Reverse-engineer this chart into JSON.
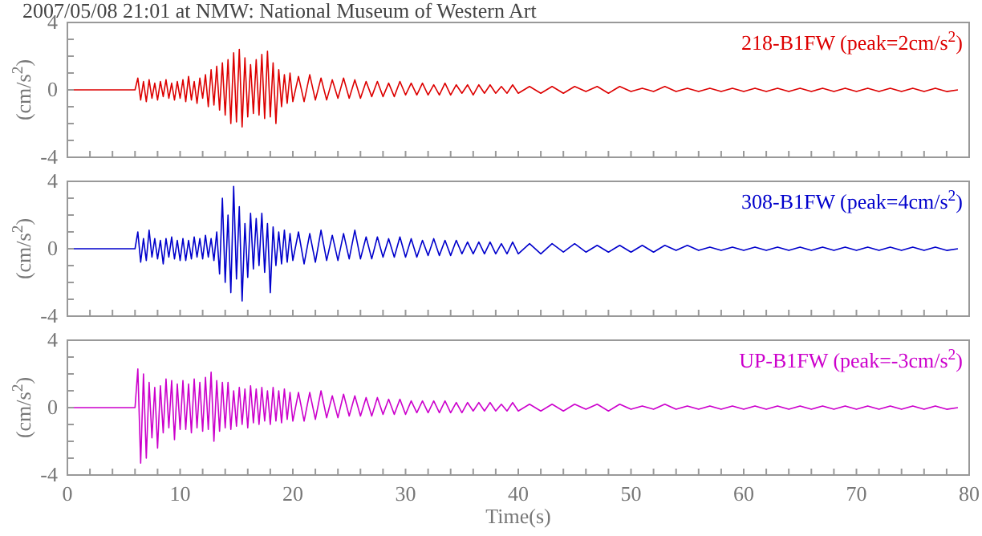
{
  "chart_data": [
    {
      "type": "line",
      "title": "2007/05/08 21:01 at NMW: National Museum of Western Art",
      "ylabel": "(cm/s$^{2}$)",
      "legend": "top right",
      "tick_labels": "y",
      "xlim": [
        0,
        80
      ],
      "ylim": [
        -4,
        4
      ],
      "xticks": [
        0,
        {
          "value": 2,
          "label": null
        },
        {
          "value": 4,
          "label": null
        },
        {
          "value": 6,
          "label": null
        },
        {
          "value": 8,
          "label": null
        },
        10,
        {
          "value": 12,
          "label": null
        },
        {
          "value": 14,
          "label": null
        },
        {
          "value": 16,
          "label": null
        },
        {
          "value": 18,
          "label": null
        },
        20,
        {
          "value": 22,
          "label": null
        },
        {
          "value": 24,
          "label": null
        },
        {
          "value": 26,
          "label": null
        },
        {
          "value": 28,
          "label": null
        },
        30,
        {
          "value": 32,
          "label": null
        },
        {
          "value": 34,
          "label": null
        },
        {
          "value": 36,
          "label": null
        },
        {
          "value": 38,
          "label": null
        },
        40,
        {
          "value": 42,
          "label": null
        },
        {
          "value": 44,
          "label": null
        },
        {
          "value": 46,
          "label": null
        },
        {
          "value": 48,
          "label": null
        },
        50,
        {
          "value": 52,
          "label": null
        },
        {
          "value": 54,
          "label": null
        },
        {
          "value": 56,
          "label": null
        },
        {
          "value": 58,
          "label": null
        },
        60,
        {
          "value": 62,
          "label": null
        },
        {
          "value": 64,
          "label": null
        },
        {
          "value": 66,
          "label": null
        },
        {
          "value": 68,
          "label": null
        },
        70,
        {
          "value": 72,
          "label": null
        },
        {
          "value": 74,
          "label": null
        },
        {
          "value": 76,
          "label": null
        },
        {
          "value": 78,
          "label": null
        },
        80
      ],
      "yticks": [
        -4,
        {
          "value": -3,
          "label": null
        },
        {
          "value": -2,
          "label": null
        },
        {
          "value": -1,
          "label": null
        },
        0,
        {
          "value": 1,
          "label": null
        },
        {
          "value": 2,
          "label": null
        },
        {
          "value": 3,
          "label": null
        },
        4
      ],
      "x": [
        0,
        6,
        6.25,
        6.5,
        6.75,
        7,
        7.25,
        7.5,
        7.75,
        8,
        8.25,
        8.5,
        8.75,
        9,
        9.25,
        9.5,
        9.75,
        10,
        10.25,
        10.5,
        10.75,
        11,
        11.25,
        11.5,
        11.75,
        12,
        12.25,
        12.5,
        12.75,
        13,
        13.25,
        13.5,
        13.75,
        14,
        14.25,
        14.5,
        14.75,
        15,
        15.25,
        15.5,
        15.75,
        16,
        16.25,
        16.5,
        16.75,
        17,
        17.25,
        17.5,
        17.75,
        18,
        18.25,
        18.5,
        18.75,
        19,
        19.25,
        19.5,
        19.75,
        20,
        20.5,
        21,
        21.5,
        22,
        22.5,
        23,
        23.5,
        24,
        24.5,
        25,
        25.5,
        26,
        26.5,
        27,
        27.5,
        28,
        28.5,
        29,
        29.5,
        30,
        30.5,
        31,
        31.5,
        32,
        32.5,
        33,
        33.5,
        34,
        34.5,
        35,
        35.5,
        36,
        36.5,
        37,
        37.5,
        38,
        38.5,
        39,
        39.5,
        40,
        41,
        42,
        43,
        44,
        45,
        46,
        47,
        48,
        49,
        50,
        51,
        52,
        53,
        54,
        55,
        56,
        57,
        58,
        59,
        60,
        61,
        62,
        63,
        64,
        65,
        66,
        67,
        68,
        69,
        70,
        71,
        72,
        73,
        74,
        75,
        76,
        77,
        78,
        79
      ],
      "series": [
        {
          "name": "218-B1FW (peak=2cm/s$^{2}$)",
          "color": "#dd0000",
          "values": [
            0,
            0,
            0.7,
            -0.6,
            0.5,
            -0.7,
            0.6,
            -0.5,
            0.4,
            -0.6,
            0.5,
            -0.4,
            0.6,
            -0.5,
            0.4,
            -0.6,
            0.5,
            -0.5,
            0.6,
            -0.7,
            0.8,
            -0.6,
            0.5,
            -0.8,
            0.7,
            -0.5,
            0.9,
            -1.0,
            1.2,
            -0.9,
            1.4,
            -1.2,
            1.6,
            -1.5,
            1.8,
            -2.0,
            2.2,
            -1.9,
            2.4,
            -2.2,
            1.9,
            -1.6,
            1.5,
            -1.4,
            1.8,
            -1.5,
            2.1,
            -1.7,
            2.3,
            -1.6,
            1.6,
            -2.0,
            1.2,
            -1.0,
            0.9,
            -0.8,
            1.0,
            -0.7,
            0.8,
            -0.7,
            0.9,
            -0.6,
            0.7,
            -0.6,
            0.6,
            -0.5,
            0.7,
            -0.5,
            0.6,
            -0.5,
            0.5,
            -0.4,
            0.5,
            -0.4,
            0.4,
            -0.4,
            0.5,
            -0.3,
            0.4,
            -0.3,
            0.4,
            -0.3,
            0.3,
            -0.3,
            0.4,
            -0.3,
            0.3,
            -0.2,
            0.3,
            -0.3,
            0.3,
            -0.2,
            0.3,
            -0.2,
            0.2,
            -0.2,
            0.3,
            -0.2,
            0.2,
            -0.2,
            0.2,
            -0.2,
            0.2,
            -0.1,
            0.2,
            -0.2,
            0.2,
            -0.1,
            0.1,
            -0.1,
            0.2,
            -0.1,
            0.1,
            -0.1,
            0.1,
            -0.1,
            0.1,
            -0.1,
            0.1,
            -0.1,
            0.1,
            -0.1,
            0.1,
            -0.1,
            0.1,
            -0.1,
            0.1,
            -0.1,
            0.1,
            -0.1,
            0.1,
            -0.1,
            0.1,
            -0.1,
            0.1,
            -0.1,
            0
          ]
        }
      ]
    },
    {
      "type": "line",
      "ylabel": "(cm/s$^{2}$)",
      "legend": "top right",
      "tick_labels": "y",
      "xlim": [
        0,
        80
      ],
      "ylim": [
        -4,
        4
      ],
      "xticks": [
        0,
        {
          "value": 2,
          "label": null
        },
        {
          "value": 4,
          "label": null
        },
        {
          "value": 6,
          "label": null
        },
        {
          "value": 8,
          "label": null
        },
        10,
        {
          "value": 12,
          "label": null
        },
        {
          "value": 14,
          "label": null
        },
        {
          "value": 16,
          "label": null
        },
        {
          "value": 18,
          "label": null
        },
        20,
        {
          "value": 22,
          "label": null
        },
        {
          "value": 24,
          "label": null
        },
        {
          "value": 26,
          "label": null
        },
        {
          "value": 28,
          "label": null
        },
        30,
        {
          "value": 32,
          "label": null
        },
        {
          "value": 34,
          "label": null
        },
        {
          "value": 36,
          "label": null
        },
        {
          "value": 38,
          "label": null
        },
        40,
        {
          "value": 42,
          "label": null
        },
        {
          "value": 44,
          "label": null
        },
        {
          "value": 46,
          "label": null
        },
        {
          "value": 48,
          "label": null
        },
        50,
        {
          "value": 52,
          "label": null
        },
        {
          "value": 54,
          "label": null
        },
        {
          "value": 56,
          "label": null
        },
        {
          "value": 58,
          "label": null
        },
        60,
        {
          "value": 62,
          "label": null
        },
        {
          "value": 64,
          "label": null
        },
        {
          "value": 66,
          "label": null
        },
        {
          "value": 68,
          "label": null
        },
        70,
        {
          "value": 72,
          "label": null
        },
        {
          "value": 74,
          "label": null
        },
        {
          "value": 76,
          "label": null
        },
        {
          "value": 78,
          "label": null
        },
        80
      ],
      "yticks": [
        -4,
        {
          "value": -3,
          "label": null
        },
        {
          "value": -2,
          "label": null
        },
        {
          "value": -1,
          "label": null
        },
        0,
        {
          "value": 1,
          "label": null
        },
        {
          "value": 2,
          "label": null
        },
        {
          "value": 3,
          "label": null
        },
        4
      ],
      "x": [
        0,
        6,
        6.25,
        6.5,
        6.75,
        7,
        7.25,
        7.5,
        7.75,
        8,
        8.25,
        8.5,
        8.75,
        9,
        9.25,
        9.5,
        9.75,
        10,
        10.25,
        10.5,
        10.75,
        11,
        11.25,
        11.5,
        11.75,
        12,
        12.25,
        12.5,
        12.75,
        13,
        13.25,
        13.5,
        13.75,
        14,
        14.25,
        14.5,
        14.75,
        15,
        15.25,
        15.5,
        15.75,
        16,
        16.25,
        16.5,
        16.75,
        17,
        17.25,
        17.5,
        17.75,
        18,
        18.25,
        18.5,
        18.75,
        19,
        19.25,
        19.5,
        19.75,
        20,
        20.5,
        21,
        21.5,
        22,
        22.5,
        23,
        23.5,
        24,
        24.5,
        25,
        25.5,
        26,
        26.5,
        27,
        27.5,
        28,
        28.5,
        29,
        29.5,
        30,
        30.5,
        31,
        31.5,
        32,
        32.5,
        33,
        33.5,
        34,
        34.5,
        35,
        35.5,
        36,
        36.5,
        37,
        37.5,
        38,
        38.5,
        39,
        39.5,
        40,
        41,
        42,
        43,
        44,
        45,
        46,
        47,
        48,
        49,
        50,
        51,
        52,
        53,
        54,
        55,
        56,
        57,
        58,
        59,
        60,
        61,
        62,
        63,
        64,
        65,
        66,
        67,
        68,
        69,
        70,
        71,
        72,
        73,
        74,
        75,
        76,
        77,
        78,
        79
      ],
      "series": [
        {
          "name": "308-B1FW (peak=4cm/s$^{2}$)",
          "color": "#0000cc",
          "values": [
            0,
            0,
            1.0,
            -0.8,
            0.6,
            -0.7,
            1.1,
            -0.5,
            0.6,
            -0.6,
            0.5,
            -0.9,
            0.6,
            -0.5,
            0.7,
            -0.6,
            0.5,
            -0.7,
            0.6,
            -0.7,
            0.5,
            -0.6,
            0.7,
            -0.5,
            0.6,
            -0.6,
            0.8,
            -0.5,
            0.6,
            -0.7,
            1.0,
            -1.5,
            3.0,
            -2.0,
            2.0,
            -2.6,
            3.7,
            -1.8,
            2.5,
            -3.1,
            1.5,
            -1.7,
            2.1,
            -1.2,
            1.8,
            -1.0,
            2.1,
            -1.4,
            1.5,
            -2.6,
            1.3,
            -1.0,
            1.0,
            -0.9,
            1.1,
            -0.8,
            0.9,
            -0.7,
            1.0,
            -0.9,
            0.9,
            -0.8,
            1.1,
            -0.7,
            0.8,
            -0.7,
            0.9,
            -0.6,
            1.1,
            -0.6,
            0.7,
            -0.6,
            0.7,
            -0.5,
            0.6,
            -0.5,
            0.7,
            -0.5,
            0.6,
            -0.5,
            0.5,
            -0.4,
            0.6,
            -0.4,
            0.5,
            -0.4,
            0.5,
            -0.3,
            0.4,
            -0.3,
            0.4,
            -0.3,
            0.4,
            -0.3,
            0.3,
            -0.3,
            0.4,
            -0.3,
            0.3,
            -0.3,
            0.3,
            -0.2,
            0.3,
            -0.2,
            0.2,
            -0.2,
            0.2,
            -0.2,
            0.2,
            -0.2,
            0.2,
            -0.1,
            0.2,
            -0.1,
            0.1,
            -0.1,
            0.1,
            -0.1,
            0.1,
            -0.1,
            0.1,
            -0.1,
            0.1,
            -0.1,
            0.1,
            -0.1,
            0.1,
            -0.1,
            0.1,
            -0.1,
            0.1,
            -0.1,
            0.1,
            -0.1,
            0.1,
            -0.1,
            0
          ]
        }
      ]
    },
    {
      "type": "line",
      "ylabel": "(cm/s$^{2}$)",
      "xlabel": "Time(s)",
      "legend": "top right",
      "xlim": [
        0,
        80
      ],
      "ylim": [
        -4,
        4
      ],
      "xticks": [
        0,
        {
          "value": 2,
          "label": null
        },
        {
          "value": 4,
          "label": null
        },
        {
          "value": 6,
          "label": null
        },
        {
          "value": 8,
          "label": null
        },
        10,
        {
          "value": 12,
          "label": null
        },
        {
          "value": 14,
          "label": null
        },
        {
          "value": 16,
          "label": null
        },
        {
          "value": 18,
          "label": null
        },
        20,
        {
          "value": 22,
          "label": null
        },
        {
          "value": 24,
          "label": null
        },
        {
          "value": 26,
          "label": null
        },
        {
          "value": 28,
          "label": null
        },
        30,
        {
          "value": 32,
          "label": null
        },
        {
          "value": 34,
          "label": null
        },
        {
          "value": 36,
          "label": null
        },
        {
          "value": 38,
          "label": null
        },
        40,
        {
          "value": 42,
          "label": null
        },
        {
          "value": 44,
          "label": null
        },
        {
          "value": 46,
          "label": null
        },
        {
          "value": 48,
          "label": null
        },
        50,
        {
          "value": 52,
          "label": null
        },
        {
          "value": 54,
          "label": null
        },
        {
          "value": 56,
          "label": null
        },
        {
          "value": 58,
          "label": null
        },
        60,
        {
          "value": 62,
          "label": null
        },
        {
          "value": 64,
          "label": null
        },
        {
          "value": 66,
          "label": null
        },
        {
          "value": 68,
          "label": null
        },
        70,
        {
          "value": 72,
          "label": null
        },
        {
          "value": 74,
          "label": null
        },
        {
          "value": 76,
          "label": null
        },
        {
          "value": 78,
          "label": null
        },
        80
      ],
      "yticks": [
        -4,
        {
          "value": -3,
          "label": null
        },
        {
          "value": -2,
          "label": null
        },
        {
          "value": -1,
          "label": null
        },
        0,
        {
          "value": 1,
          "label": null
        },
        {
          "value": 2,
          "label": null
        },
        {
          "value": 3,
          "label": null
        },
        4
      ],
      "x": [
        0,
        6,
        6.25,
        6.5,
        6.75,
        7,
        7.25,
        7.5,
        7.75,
        8,
        8.25,
        8.5,
        8.75,
        9,
        9.25,
        9.5,
        9.75,
        10,
        10.25,
        10.5,
        10.75,
        11,
        11.25,
        11.5,
        11.75,
        12,
        12.25,
        12.5,
        12.75,
        13,
        13.25,
        13.5,
        13.75,
        14,
        14.25,
        14.5,
        14.75,
        15,
        15.25,
        15.5,
        15.75,
        16,
        16.25,
        16.5,
        16.75,
        17,
        17.25,
        17.5,
        17.75,
        18,
        18.25,
        18.5,
        18.75,
        19,
        19.25,
        19.5,
        19.75,
        20,
        20.5,
        21,
        21.5,
        22,
        22.5,
        23,
        23.5,
        24,
        24.5,
        25,
        25.5,
        26,
        26.5,
        27,
        27.5,
        28,
        28.5,
        29,
        29.5,
        30,
        30.5,
        31,
        31.5,
        32,
        32.5,
        33,
        33.5,
        34,
        34.5,
        35,
        35.5,
        36,
        36.5,
        37,
        37.5,
        38,
        38.5,
        39,
        39.5,
        40,
        41,
        42,
        43,
        44,
        45,
        46,
        47,
        48,
        49,
        50,
        51,
        52,
        53,
        54,
        55,
        56,
        57,
        58,
        59,
        60,
        61,
        62,
        63,
        64,
        65,
        66,
        67,
        68,
        69,
        70,
        71,
        72,
        73,
        74,
        75,
        76,
        77,
        78,
        79
      ],
      "series": [
        {
          "name": "UP-B1FW (peak=-3cm/s$^{2}$)",
          "color": "#cc00cc",
          "values": [
            0,
            0,
            2.3,
            -3.3,
            2.0,
            -3.0,
            1.5,
            -1.8,
            1.2,
            -2.4,
            1.3,
            -1.5,
            1.7,
            -1.2,
            1.6,
            -1.9,
            1.4,
            -1.3,
            1.6,
            -1.3,
            1.4,
            -1.5,
            1.7,
            -1.2,
            1.5,
            -1.4,
            1.8,
            -1.3,
            2.1,
            -2.0,
            1.6,
            -1.4,
            1.5,
            -1.2,
            1.5,
            -1.3,
            1.0,
            -1.1,
            1.2,
            -1.0,
            1.1,
            -1.2,
            1.3,
            -0.9,
            1.1,
            -1.0,
            1.2,
            -0.8,
            1.0,
            -1.0,
            1.2,
            -0.8,
            1.0,
            -0.9,
            1.1,
            -0.7,
            0.9,
            -0.8,
            0.9,
            -0.8,
            0.9,
            -0.7,
            1.0,
            -0.6,
            0.7,
            -0.6,
            0.8,
            -0.5,
            0.7,
            -0.5,
            0.6,
            -0.5,
            0.6,
            -0.4,
            0.5,
            -0.4,
            0.5,
            -0.4,
            0.4,
            -0.3,
            0.4,
            -0.3,
            0.4,
            -0.3,
            0.4,
            -0.3,
            0.3,
            -0.3,
            0.3,
            -0.2,
            0.3,
            -0.2,
            0.3,
            -0.2,
            0.2,
            -0.2,
            0.3,
            -0.2,
            0.2,
            -0.2,
            0.2,
            -0.2,
            0.2,
            -0.1,
            0.2,
            -0.2,
            0.2,
            -0.1,
            0.1,
            -0.1,
            0.2,
            -0.1,
            0.1,
            -0.1,
            0.1,
            -0.1,
            0.1,
            -0.1,
            0.1,
            -0.1,
            0.1,
            -0.1,
            0.1,
            -0.1,
            0.1,
            -0.1,
            0.1,
            -0.1,
            0.1,
            -0.1,
            0.1,
            -0.1,
            0.1,
            -0.1,
            0.1,
            -0.1,
            0
          ]
        }
      ]
    }
  ]
}
